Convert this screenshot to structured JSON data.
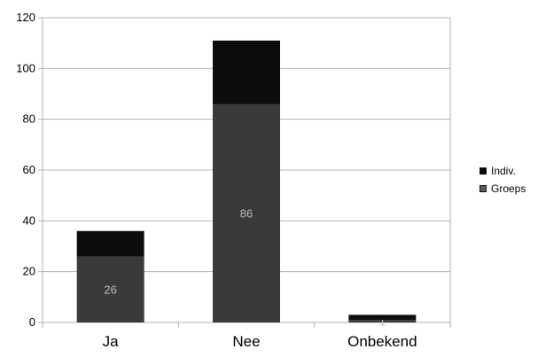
{
  "chart_data": {
    "type": "bar",
    "stacked": true,
    "title": "",
    "xlabel": "",
    "ylabel": "",
    "categories": [
      "Ja",
      "Nee",
      "Onbekend"
    ],
    "ylim": [
      0,
      120
    ],
    "yticks": [
      "0",
      "20",
      "40",
      "60",
      "80",
      "100",
      "120"
    ],
    "grid": true,
    "legend_position": "right",
    "series": [
      {
        "name": "Groeps",
        "values": [
          26,
          86,
          1
        ],
        "labels": [
          "26",
          "86",
          "1"
        ],
        "color": "#3a3a3a"
      },
      {
        "name": "Indiv.",
        "values": [
          10,
          25,
          2
        ],
        "labels": [
          "",
          "",
          ""
        ],
        "color": "#0d0d0d"
      }
    ]
  }
}
